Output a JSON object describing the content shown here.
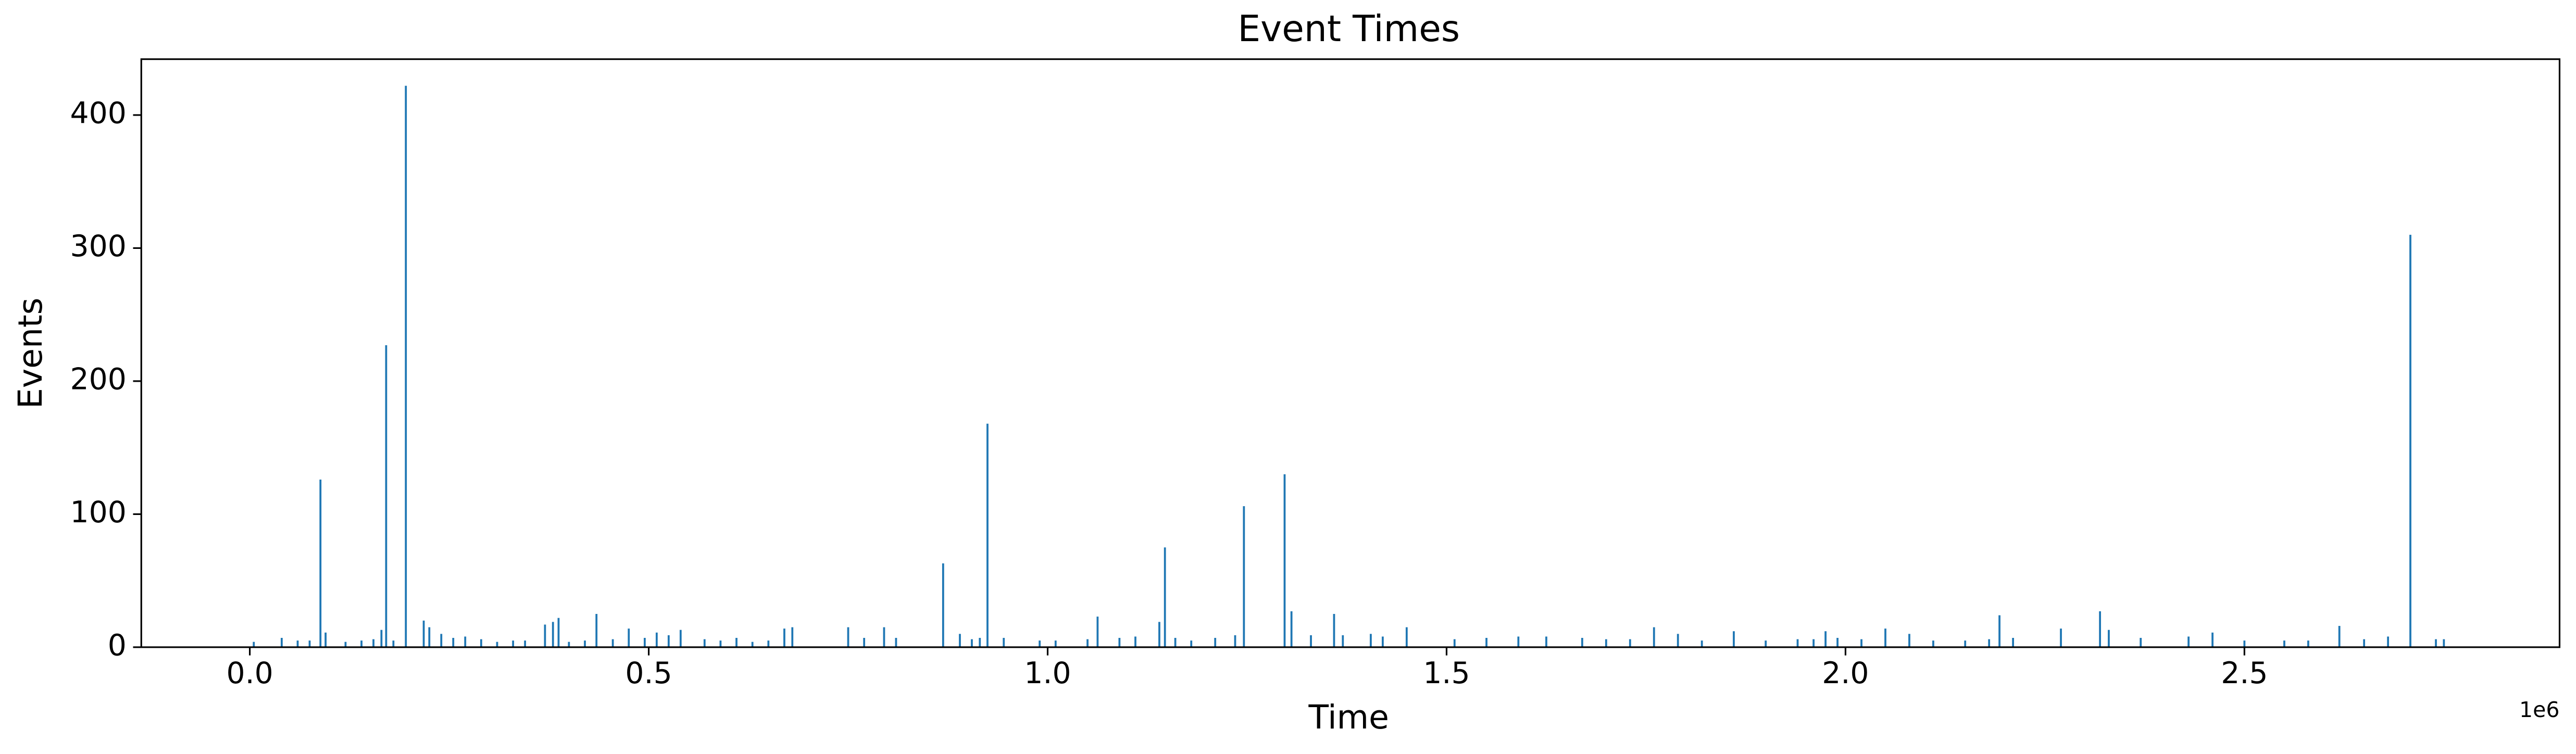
{
  "chart_data": {
    "type": "spike",
    "title": "Event Times",
    "x_label": "Time",
    "y_label": "Events",
    "x_offset_label": "1e6",
    "color": "#1f77b4",
    "x": [
      5000,
      40000,
      60000,
      75000,
      88550,
      95000,
      120000,
      140000,
      155000,
      165000,
      170900,
      180000,
      195600,
      218000,
      225000,
      240000,
      255000,
      270000,
      290000,
      310000,
      330000,
      345000,
      370000,
      380000,
      387000,
      400000,
      420000,
      434500,
      455000,
      475000,
      495000,
      510000,
      525000,
      540000,
      570000,
      590000,
      610000,
      630000,
      650000,
      670000,
      680000,
      750000,
      770000,
      795000,
      810000,
      869000,
      890000,
      905000,
      915000,
      924600,
      945000,
      990000,
      1010000,
      1050000,
      1062600,
      1090000,
      1110000,
      1140000,
      1147000,
      1160000,
      1180000,
      1210000,
      1235000,
      1246000,
      1297000,
      1305600,
      1330000,
      1359000,
      1370000,
      1405000,
      1420000,
      1450000,
      1510000,
      1550000,
      1590000,
      1625000,
      1670000,
      1700000,
      1730000,
      1760000,
      1790000,
      1820000,
      1860000,
      1900000,
      1940000,
      1960000,
      1975000,
      1990000,
      2020000,
      2050000,
      2080000,
      2110000,
      2150000,
      2180000,
      2193000,
      2210000,
      2270000,
      2319000,
      2330000,
      2370000,
      2430000,
      2460000,
      2500000,
      2550000,
      2580000,
      2619000,
      2650000,
      2680000,
      2708000,
      2740000,
      2750000
    ],
    "values": [
      4,
      7,
      5,
      5,
      126,
      11,
      4,
      5,
      6,
      13,
      227,
      5,
      422,
      20,
      15,
      10,
      7,
      8,
      6,
      4,
      5,
      5,
      17,
      19,
      22,
      4,
      5,
      25,
      6,
      14,
      7,
      11,
      9,
      13,
      6,
      5,
      7,
      4,
      5,
      14,
      15,
      15,
      7,
      15,
      7,
      63,
      10,
      6,
      7,
      168,
      7,
      5,
      5,
      6,
      23,
      7,
      8,
      19,
      75,
      7,
      5,
      7,
      9,
      106,
      130,
      27,
      9,
      25,
      9,
      10,
      8,
      15,
      6,
      7,
      8,
      8,
      7,
      6,
      6,
      15,
      10,
      5,
      12,
      5,
      6,
      6,
      12,
      7,
      6,
      14,
      10,
      5,
      5,
      6,
      24,
      7,
      14,
      27,
      13,
      7,
      8,
      11,
      5,
      5,
      5,
      16,
      6,
      8,
      310,
      6,
      6
    ],
    "xlim": [
      -136000,
      2895000
    ],
    "xticks": [
      {
        "value": 0,
        "label": "0.0"
      },
      {
        "value": 500000,
        "label": "0.5"
      },
      {
        "value": 1000000,
        "label": "1.0"
      },
      {
        "value": 1500000,
        "label": "1.5"
      },
      {
        "value": 2000000,
        "label": "2.0"
      },
      {
        "value": 2500000,
        "label": "2.5"
      }
    ],
    "ylim": [
      0,
      442
    ],
    "yticks": [
      0,
      100,
      200,
      300,
      400
    ]
  }
}
